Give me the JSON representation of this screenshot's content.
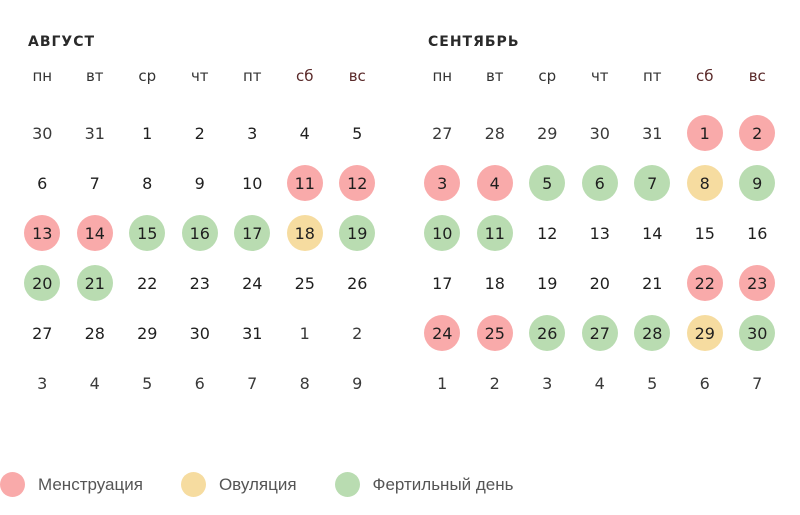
{
  "colors": {
    "menstruation": "#f9aaaa",
    "ovulation": "#f6dca0",
    "fertile": "#b9dcb1"
  },
  "weekdays": [
    "пн",
    "вт",
    "ср",
    "чт",
    "пт",
    "сб",
    "вс"
  ],
  "months": [
    {
      "title": "АВГУСТ",
      "weeks": [
        [
          {
            "d": "30",
            "o": 1
          },
          {
            "d": "31",
            "o": 1
          },
          {
            "d": "1"
          },
          {
            "d": "2"
          },
          {
            "d": "3"
          },
          {
            "d": "4"
          },
          {
            "d": "5"
          }
        ],
        [
          {
            "d": "6"
          },
          {
            "d": "7"
          },
          {
            "d": "8"
          },
          {
            "d": "9"
          },
          {
            "d": "10"
          },
          {
            "d": "11",
            "t": "menstruation"
          },
          {
            "d": "12",
            "t": "menstruation"
          }
        ],
        [
          {
            "d": "13",
            "t": "menstruation"
          },
          {
            "d": "14",
            "t": "menstruation"
          },
          {
            "d": "15",
            "t": "fertile"
          },
          {
            "d": "16",
            "t": "fertile"
          },
          {
            "d": "17",
            "t": "fertile"
          },
          {
            "d": "18",
            "t": "ovulation"
          },
          {
            "d": "19",
            "t": "fertile"
          }
        ],
        [
          {
            "d": "20",
            "t": "fertile"
          },
          {
            "d": "21",
            "t": "fertile"
          },
          {
            "d": "22"
          },
          {
            "d": "23"
          },
          {
            "d": "24"
          },
          {
            "d": "25"
          },
          {
            "d": "26"
          }
        ],
        [
          {
            "d": "27"
          },
          {
            "d": "28"
          },
          {
            "d": "29"
          },
          {
            "d": "30"
          },
          {
            "d": "31"
          },
          {
            "d": "1",
            "o": 1
          },
          {
            "d": "2",
            "o": 1
          }
        ],
        [
          {
            "d": "3",
            "o": 1
          },
          {
            "d": "4",
            "o": 1
          },
          {
            "d": "5",
            "o": 1
          },
          {
            "d": "6",
            "o": 1
          },
          {
            "d": "7",
            "o": 1
          },
          {
            "d": "8",
            "o": 1
          },
          {
            "d": "9",
            "o": 1
          }
        ]
      ]
    },
    {
      "title": "СЕНТЯБРЬ",
      "weeks": [
        [
          {
            "d": "27",
            "o": 1
          },
          {
            "d": "28",
            "o": 1
          },
          {
            "d": "29",
            "o": 1
          },
          {
            "d": "30",
            "o": 1
          },
          {
            "d": "31",
            "o": 1
          },
          {
            "d": "1",
            "t": "menstruation"
          },
          {
            "d": "2",
            "t": "menstruation"
          }
        ],
        [
          {
            "d": "3",
            "t": "menstruation"
          },
          {
            "d": "4",
            "t": "menstruation"
          },
          {
            "d": "5",
            "t": "fertile"
          },
          {
            "d": "6",
            "t": "fertile"
          },
          {
            "d": "7",
            "t": "fertile"
          },
          {
            "d": "8",
            "t": "ovulation"
          },
          {
            "d": "9",
            "t": "fertile"
          }
        ],
        [
          {
            "d": "10",
            "t": "fertile"
          },
          {
            "d": "11",
            "t": "fertile"
          },
          {
            "d": "12"
          },
          {
            "d": "13"
          },
          {
            "d": "14"
          },
          {
            "d": "15"
          },
          {
            "d": "16"
          }
        ],
        [
          {
            "d": "17"
          },
          {
            "d": "18"
          },
          {
            "d": "19"
          },
          {
            "d": "20"
          },
          {
            "d": "21"
          },
          {
            "d": "22",
            "t": "menstruation"
          },
          {
            "d": "23",
            "t": "menstruation"
          }
        ],
        [
          {
            "d": "24",
            "t": "menstruation"
          },
          {
            "d": "25",
            "t": "menstruation"
          },
          {
            "d": "26",
            "t": "fertile"
          },
          {
            "d": "27",
            "t": "fertile"
          },
          {
            "d": "28",
            "t": "fertile"
          },
          {
            "d": "29",
            "t": "ovulation"
          },
          {
            "d": "30",
            "t": "fertile"
          }
        ],
        [
          {
            "d": "1",
            "o": 1
          },
          {
            "d": "2",
            "o": 1
          },
          {
            "d": "3",
            "o": 1
          },
          {
            "d": "4",
            "o": 1
          },
          {
            "d": "5",
            "o": 1
          },
          {
            "d": "6",
            "o": 1
          },
          {
            "d": "7",
            "o": 1
          }
        ]
      ]
    }
  ],
  "legend": [
    {
      "key": "menstruation",
      "label": "Менструация"
    },
    {
      "key": "ovulation",
      "label": "Овуляция"
    },
    {
      "key": "fertile",
      "label": "Фертильный день"
    }
  ]
}
